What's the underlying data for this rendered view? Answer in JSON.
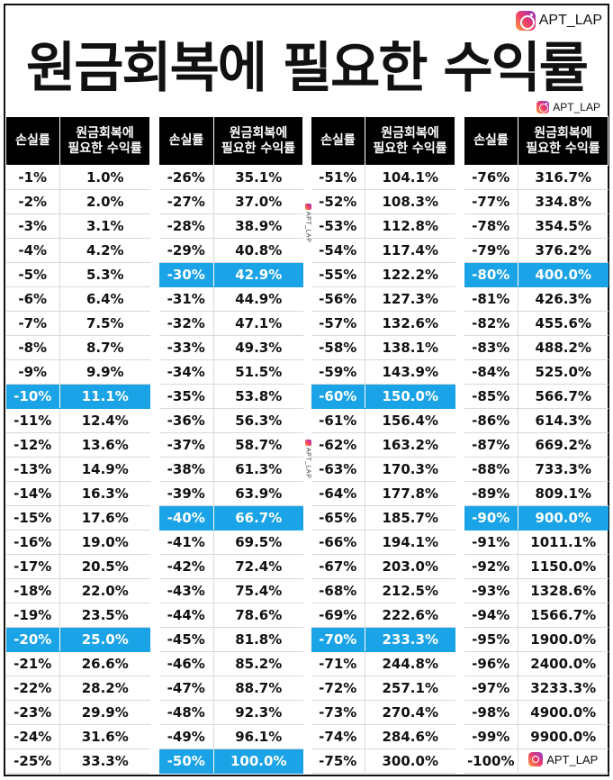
{
  "brand": {
    "handle": "APT_LAP",
    "icon": "instagram-icon"
  },
  "title": "원금회복에 필요한 수익률",
  "watermark": "APT_LAP",
  "colors": {
    "highlight": "#1aa3e6",
    "header_bg": "#000000"
  },
  "table": {
    "header_loss": "손실률",
    "header_gain_line1": "원금회복에",
    "header_gain_line2": "필요한 수익률",
    "columns": [
      {
        "rows": [
          {
            "loss": "-1%",
            "gain": "1.0%"
          },
          {
            "loss": "-2%",
            "gain": "2.0%"
          },
          {
            "loss": "-3%",
            "gain": "3.1%"
          },
          {
            "loss": "-4%",
            "gain": "4.2%"
          },
          {
            "loss": "-5%",
            "gain": "5.3%"
          },
          {
            "loss": "-6%",
            "gain": "6.4%"
          },
          {
            "loss": "-7%",
            "gain": "7.5%"
          },
          {
            "loss": "-8%",
            "gain": "8.7%"
          },
          {
            "loss": "-9%",
            "gain": "9.9%"
          },
          {
            "loss": "-10%",
            "gain": "11.1%",
            "highlight": true
          },
          {
            "loss": "-11%",
            "gain": "12.4%"
          },
          {
            "loss": "-12%",
            "gain": "13.6%"
          },
          {
            "loss": "-13%",
            "gain": "14.9%"
          },
          {
            "loss": "-14%",
            "gain": "16.3%"
          },
          {
            "loss": "-15%",
            "gain": "17.6%"
          },
          {
            "loss": "-16%",
            "gain": "19.0%"
          },
          {
            "loss": "-17%",
            "gain": "20.5%"
          },
          {
            "loss": "-18%",
            "gain": "22.0%"
          },
          {
            "loss": "-19%",
            "gain": "23.5%"
          },
          {
            "loss": "-20%",
            "gain": "25.0%",
            "highlight": true
          },
          {
            "loss": "-21%",
            "gain": "26.6%"
          },
          {
            "loss": "-22%",
            "gain": "28.2%"
          },
          {
            "loss": "-23%",
            "gain": "29.9%"
          },
          {
            "loss": "-24%",
            "gain": "31.6%"
          },
          {
            "loss": "-25%",
            "gain": "33.3%"
          }
        ]
      },
      {
        "rows": [
          {
            "loss": "-26%",
            "gain": "35.1%"
          },
          {
            "loss": "-27%",
            "gain": "37.0%"
          },
          {
            "loss": "-28%",
            "gain": "38.9%"
          },
          {
            "loss": "-29%",
            "gain": "40.8%"
          },
          {
            "loss": "-30%",
            "gain": "42.9%",
            "highlight": true
          },
          {
            "loss": "-31%",
            "gain": "44.9%"
          },
          {
            "loss": "-32%",
            "gain": "47.1%"
          },
          {
            "loss": "-33%",
            "gain": "49.3%"
          },
          {
            "loss": "-34%",
            "gain": "51.5%"
          },
          {
            "loss": "-35%",
            "gain": "53.8%"
          },
          {
            "loss": "-36%",
            "gain": "56.3%"
          },
          {
            "loss": "-37%",
            "gain": "58.7%"
          },
          {
            "loss": "-38%",
            "gain": "61.3%"
          },
          {
            "loss": "-39%",
            "gain": "63.9%"
          },
          {
            "loss": "-40%",
            "gain": "66.7%",
            "highlight": true
          },
          {
            "loss": "-41%",
            "gain": "69.5%"
          },
          {
            "loss": "-42%",
            "gain": "72.4%"
          },
          {
            "loss": "-43%",
            "gain": "75.4%"
          },
          {
            "loss": "-44%",
            "gain": "78.6%"
          },
          {
            "loss": "-45%",
            "gain": "81.8%"
          },
          {
            "loss": "-46%",
            "gain": "85.2%"
          },
          {
            "loss": "-47%",
            "gain": "88.7%"
          },
          {
            "loss": "-48%",
            "gain": "92.3%"
          },
          {
            "loss": "-49%",
            "gain": "96.1%"
          },
          {
            "loss": "-50%",
            "gain": "100.0%",
            "highlight": true
          }
        ]
      },
      {
        "rows": [
          {
            "loss": "-51%",
            "gain": "104.1%"
          },
          {
            "loss": "-52%",
            "gain": "108.3%"
          },
          {
            "loss": "-53%",
            "gain": "112.8%"
          },
          {
            "loss": "-54%",
            "gain": "117.4%"
          },
          {
            "loss": "-55%",
            "gain": "122.2%"
          },
          {
            "loss": "-56%",
            "gain": "127.3%"
          },
          {
            "loss": "-57%",
            "gain": "132.6%"
          },
          {
            "loss": "-58%",
            "gain": "138.1%"
          },
          {
            "loss": "-59%",
            "gain": "143.9%"
          },
          {
            "loss": "-60%",
            "gain": "150.0%",
            "highlight": true
          },
          {
            "loss": "-61%",
            "gain": "156.4%"
          },
          {
            "loss": "-62%",
            "gain": "163.2%"
          },
          {
            "loss": "-63%",
            "gain": "170.3%"
          },
          {
            "loss": "-64%",
            "gain": "177.8%"
          },
          {
            "loss": "-65%",
            "gain": "185.7%"
          },
          {
            "loss": "-66%",
            "gain": "194.1%"
          },
          {
            "loss": "-67%",
            "gain": "203.0%"
          },
          {
            "loss": "-68%",
            "gain": "212.5%"
          },
          {
            "loss": "-69%",
            "gain": "222.6%"
          },
          {
            "loss": "-70%",
            "gain": "233.3%",
            "highlight": true
          },
          {
            "loss": "-71%",
            "gain": "244.8%"
          },
          {
            "loss": "-72%",
            "gain": "257.1%"
          },
          {
            "loss": "-73%",
            "gain": "270.4%"
          },
          {
            "loss": "-74%",
            "gain": "284.6%"
          },
          {
            "loss": "-75%",
            "gain": "300.0%"
          }
        ]
      },
      {
        "rows": [
          {
            "loss": "-76%",
            "gain": "316.7%"
          },
          {
            "loss": "-77%",
            "gain": "334.8%"
          },
          {
            "loss": "-78%",
            "gain": "354.5%"
          },
          {
            "loss": "-79%",
            "gain": "376.2%"
          },
          {
            "loss": "-80%",
            "gain": "400.0%",
            "highlight": true
          },
          {
            "loss": "-81%",
            "gain": "426.3%"
          },
          {
            "loss": "-82%",
            "gain": "455.6%"
          },
          {
            "loss": "-83%",
            "gain": "488.2%"
          },
          {
            "loss": "-84%",
            "gain": "525.0%"
          },
          {
            "loss": "-85%",
            "gain": "566.7%"
          },
          {
            "loss": "-86%",
            "gain": "614.3%"
          },
          {
            "loss": "-87%",
            "gain": "669.2%"
          },
          {
            "loss": "-88%",
            "gain": "733.3%"
          },
          {
            "loss": "-89%",
            "gain": "809.1%"
          },
          {
            "loss": "-90%",
            "gain": "900.0%",
            "highlight": true
          },
          {
            "loss": "-91%",
            "gain": "1011.1%"
          },
          {
            "loss": "-92%",
            "gain": "1150.0%"
          },
          {
            "loss": "-93%",
            "gain": "1328.6%"
          },
          {
            "loss": "-94%",
            "gain": "1566.7%"
          },
          {
            "loss": "-95%",
            "gain": "1900.0%"
          },
          {
            "loss": "-96%",
            "gain": "2400.0%"
          },
          {
            "loss": "-97%",
            "gain": "3233.3%"
          },
          {
            "loss": "-98%",
            "gain": "4900.0%"
          },
          {
            "loss": "-99%",
            "gain": "9900.0%"
          },
          {
            "loss": "-100%",
            "gain": "APT_LAP",
            "gain_is_brand": true
          }
        ]
      }
    ]
  }
}
